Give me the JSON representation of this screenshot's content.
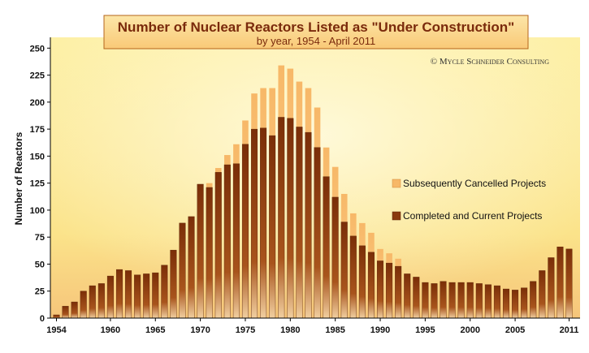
{
  "chart_data": {
    "type": "bar",
    "title": "Number of Nuclear Reactors Listed as \"Under Construction\"",
    "subtitle": "by year, 1954 - April 2011",
    "copyright": "© Mycle Schneider Consulting",
    "ylabel": "Number of Reactors",
    "xlabel": "",
    "ylim": [
      0,
      260
    ],
    "yticks": [
      0,
      25,
      50,
      75,
      100,
      125,
      150,
      175,
      200,
      225,
      250
    ],
    "xtick_labels": [
      "1954",
      "1960",
      "1965",
      "1970",
      "1975",
      "1980",
      "1985",
      "1990",
      "1995",
      "2000",
      "2005",
      "2011"
    ],
    "categories": [
      "1954",
      "1955",
      "1956",
      "1957",
      "1958",
      "1959",
      "1960",
      "1961",
      "1962",
      "1963",
      "1964",
      "1965",
      "1966",
      "1967",
      "1968",
      "1969",
      "1970",
      "1971",
      "1972",
      "1973",
      "1974",
      "1975",
      "1976",
      "1977",
      "1978",
      "1979",
      "1980",
      "1981",
      "1982",
      "1983",
      "1984",
      "1985",
      "1986",
      "1987",
      "1988",
      "1989",
      "1990",
      "1991",
      "1992",
      "1993",
      "1994",
      "1995",
      "1996",
      "1997",
      "1998",
      "1999",
      "2000",
      "2001",
      "2002",
      "2003",
      "2004",
      "2005",
      "2006",
      "2007",
      "2008",
      "2009",
      "2010",
      "2011"
    ],
    "series": [
      {
        "name": "Completed and Current Projects",
        "color": "#8b3a0f",
        "values": [
          3,
          11,
          15,
          25,
          30,
          32,
          39,
          45,
          44,
          40,
          41,
          42,
          49,
          63,
          88,
          94,
          124,
          121,
          135,
          142,
          143,
          161,
          175,
          176,
          169,
          186,
          185,
          177,
          172,
          158,
          131,
          112,
          89,
          76,
          67,
          61,
          53,
          51,
          48,
          41,
          38,
          33,
          32,
          34,
          33,
          33,
          33,
          32,
          31,
          30,
          27,
          26,
          28,
          34,
          44,
          56,
          66,
          64
        ]
      },
      {
        "name": "Subsequently Cancelled Projects",
        "color": "#f7b868",
        "values": [
          0,
          0,
          0,
          0,
          0,
          0,
          0,
          0,
          0,
          0,
          0,
          0,
          0,
          0,
          0,
          0,
          0,
          4,
          4,
          9,
          18,
          22,
          33,
          37,
          44,
          48,
          46,
          42,
          41,
          37,
          27,
          28,
          26,
          21,
          21,
          18,
          11,
          9,
          7,
          0,
          0,
          0,
          0,
          0,
          0,
          0,
          0,
          0,
          0,
          0,
          0,
          0,
          0,
          0,
          0,
          0,
          0,
          0
        ]
      }
    ],
    "legend_position": "right",
    "grid": false
  }
}
